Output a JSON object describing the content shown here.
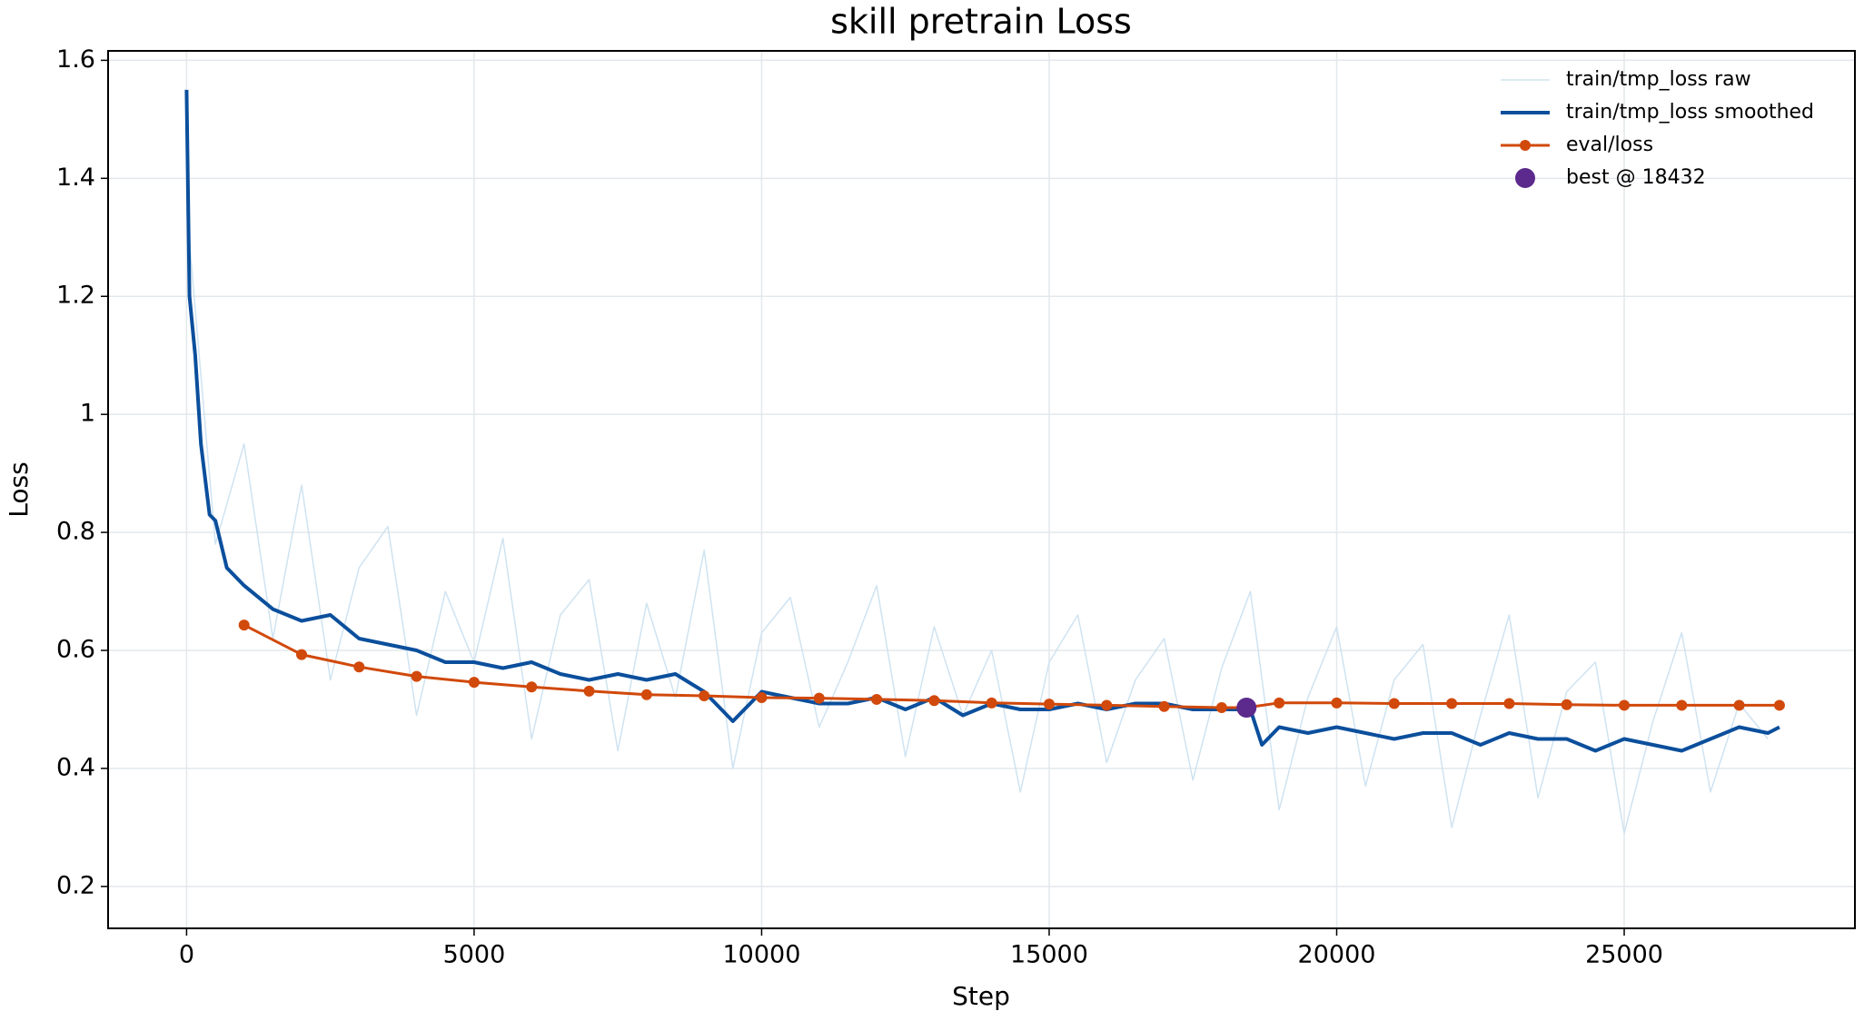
{
  "chart_data": {
    "type": "line",
    "title": "skill pretrain Loss",
    "x_label": "Step",
    "y_label": "Loss",
    "xlim": [
      -1365,
      29012
    ],
    "xticks": [
      0,
      5000,
      10000,
      15000,
      20000,
      25000
    ],
    "ylim": [
      0.129,
      1.616
    ],
    "yticks": [
      0.2,
      0.4,
      0.6,
      0.8,
      1.0,
      1.2,
      1.4,
      1.6
    ],
    "grid": true,
    "legend": "upper right",
    "series": [
      {
        "name": "train/tmp_loss raw",
        "color": "#cfe3f1",
        "style": "line",
        "width": 1.5,
        "x": [
          0,
          500,
          1000,
          1500,
          2000,
          2500,
          3000,
          3500,
          4000,
          4500,
          5000,
          5500,
          6000,
          6500,
          7000,
          7500,
          8000,
          8500,
          9000,
          9500,
          10000,
          10500,
          11000,
          11500,
          12000,
          12500,
          13000,
          13500,
          14000,
          14500,
          15000,
          15500,
          16000,
          16500,
          17000,
          17500,
          18000,
          18500,
          19000,
          19500,
          20000,
          20500,
          21000,
          21500,
          22000,
          22500,
          23000,
          23500,
          24000,
          24500,
          25000,
          25500,
          26000,
          26500,
          27000,
          27500
        ],
        "values": [
          1.35,
          0.78,
          0.95,
          0.62,
          0.88,
          0.55,
          0.74,
          0.81,
          0.49,
          0.7,
          0.58,
          0.79,
          0.45,
          0.66,
          0.72,
          0.43,
          0.68,
          0.52,
          0.77,
          0.4,
          0.63,
          0.69,
          0.47,
          0.58,
          0.71,
          0.42,
          0.64,
          0.49,
          0.6,
          0.36,
          0.58,
          0.66,
          0.41,
          0.55,
          0.62,
          0.38,
          0.57,
          0.7,
          0.33,
          0.52,
          0.64,
          0.37,
          0.55,
          0.61,
          0.3,
          0.49,
          0.66,
          0.35,
          0.53,
          0.58,
          0.29,
          0.48,
          0.63,
          0.36,
          0.51,
          0.45
        ]
      },
      {
        "name": "train/tmp_loss smoothed",
        "color": "#0b4f9c",
        "style": "line",
        "width": 4,
        "x": [
          0,
          50,
          150,
          250,
          400,
          500,
          700,
          1000,
          1500,
          2000,
          2500,
          3000,
          3500,
          4000,
          4500,
          5000,
          5500,
          6000,
          6500,
          7000,
          7500,
          8000,
          8500,
          9000,
          9500,
          10000,
          10500,
          11000,
          11500,
          12000,
          12500,
          13000,
          13500,
          14000,
          14500,
          15000,
          15500,
          16000,
          16500,
          17000,
          17500,
          18000,
          18500,
          18700,
          19000,
          19500,
          20000,
          20500,
          21000,
          21500,
          22000,
          22500,
          23000,
          23500,
          24000,
          24500,
          25000,
          25500,
          26000,
          26500,
          27000,
          27500,
          27700
        ],
        "values": [
          1.55,
          1.2,
          1.1,
          0.95,
          0.83,
          0.82,
          0.74,
          0.71,
          0.67,
          0.65,
          0.66,
          0.62,
          0.61,
          0.6,
          0.58,
          0.58,
          0.57,
          0.58,
          0.56,
          0.55,
          0.56,
          0.55,
          0.56,
          0.53,
          0.48,
          0.53,
          0.52,
          0.51,
          0.51,
          0.52,
          0.5,
          0.52,
          0.49,
          0.51,
          0.5,
          0.5,
          0.51,
          0.5,
          0.51,
          0.51,
          0.5,
          0.5,
          0.5,
          0.44,
          0.47,
          0.46,
          0.47,
          0.46,
          0.45,
          0.46,
          0.46,
          0.44,
          0.46,
          0.45,
          0.45,
          0.43,
          0.45,
          0.44,
          0.43,
          0.45,
          0.47,
          0.46,
          0.47
        ]
      },
      {
        "name": "eval/loss",
        "color": "#d1490b",
        "style": "line-marker",
        "width": 3,
        "x": [
          1000,
          2000,
          3000,
          4000,
          5000,
          6000,
          7000,
          8000,
          9000,
          10000,
          11000,
          12000,
          13000,
          14000,
          15000,
          16000,
          17000,
          18000,
          18432,
          19000,
          20000,
          21000,
          22000,
          23000,
          24000,
          25000,
          26000,
          27000,
          27700
        ],
        "values": [
          0.643,
          0.593,
          0.572,
          0.556,
          0.546,
          0.538,
          0.531,
          0.525,
          0.523,
          0.52,
          0.519,
          0.517,
          0.515,
          0.511,
          0.509,
          0.507,
          0.505,
          0.503,
          0.503,
          0.511,
          0.511,
          0.51,
          0.51,
          0.51,
          0.508,
          0.507,
          0.507,
          0.507,
          0.507
        ]
      },
      {
        "name": "best @ 18432",
        "color": "#5b2a8c",
        "style": "scatter",
        "width": 0,
        "x": [
          18432
        ],
        "values": [
          0.503
        ]
      }
    ]
  }
}
